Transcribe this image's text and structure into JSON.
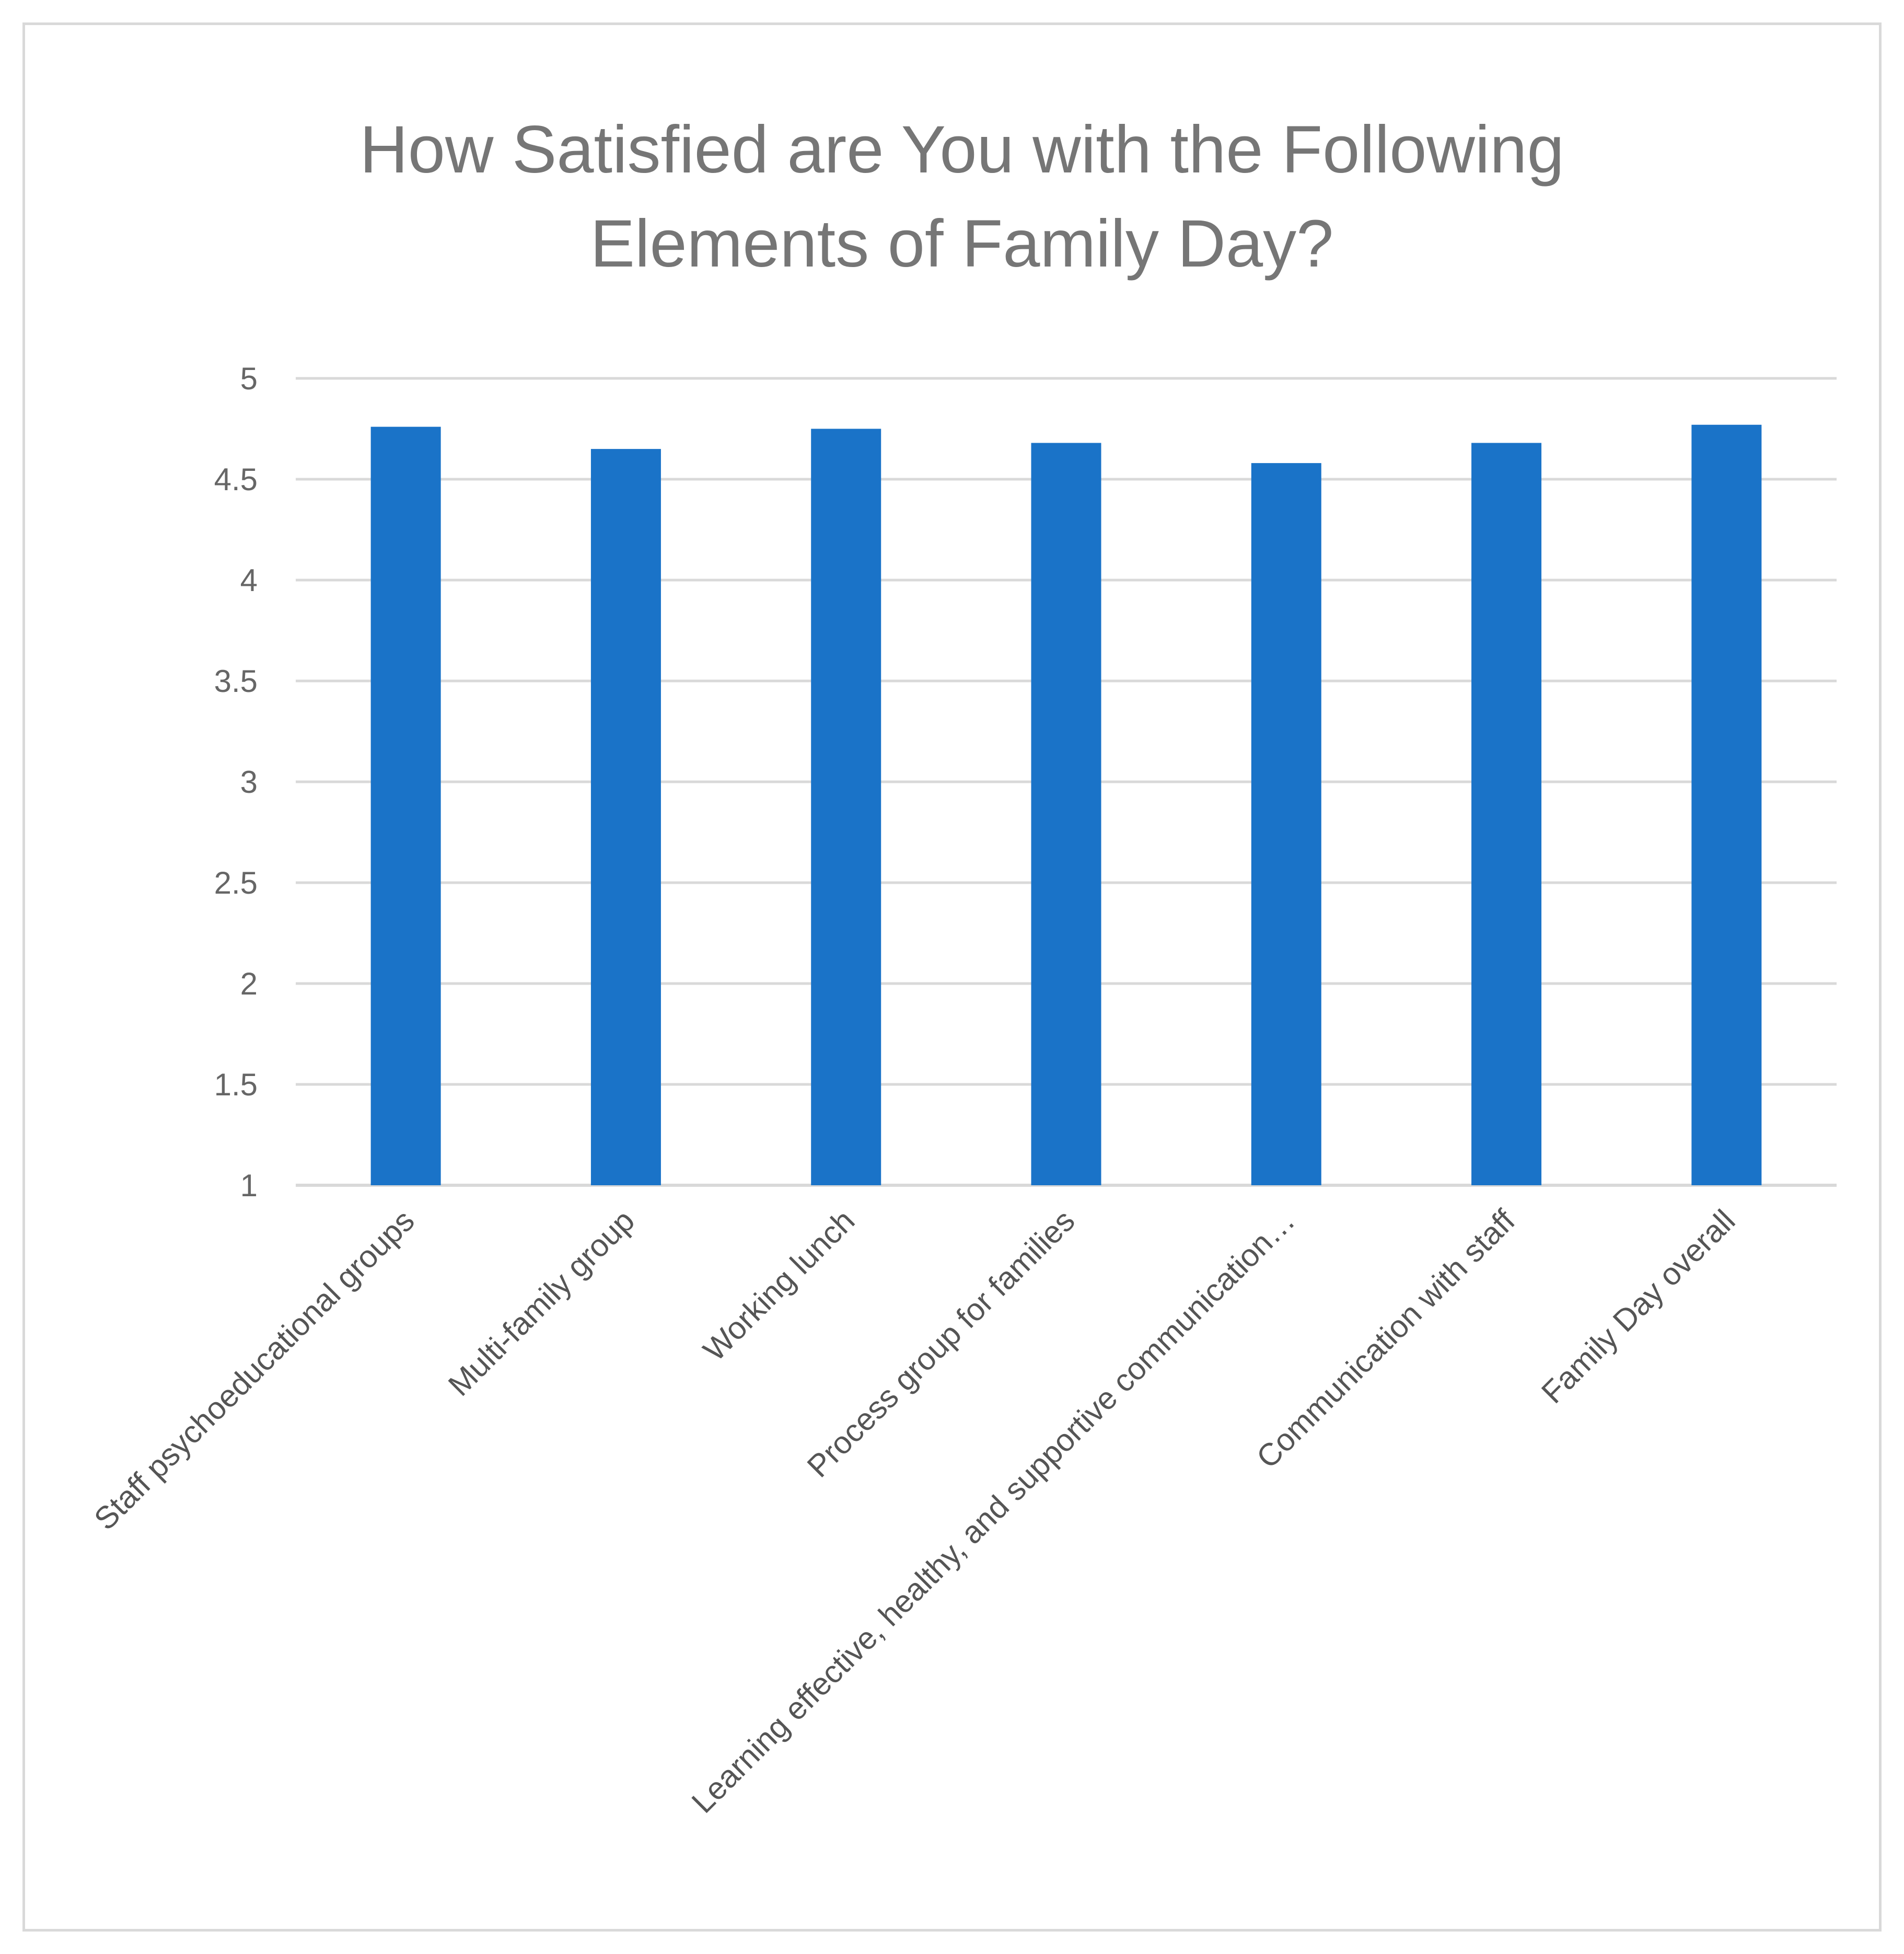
{
  "chart_data": {
    "type": "bar",
    "title_lines": [
      "How Satisfied are You with the Following",
      "Elements of Family Day?"
    ],
    "categories": [
      "Staff psychoeducational groups",
      "Multi-family group",
      "Working lunch",
      "Process group for families",
      "Learning effective, healthy, and supportive communication…",
      "Communication with staff",
      "Family Day overall"
    ],
    "values": [
      4.76,
      4.65,
      4.75,
      4.68,
      4.58,
      4.68,
      4.77
    ],
    "ylim": [
      1,
      5
    ],
    "yticks": [
      {
        "value": 1,
        "label": "1"
      },
      {
        "value": 1.5,
        "label": "1.5"
      },
      {
        "value": 2,
        "label": "2"
      },
      {
        "value": 2.5,
        "label": "2.5"
      },
      {
        "value": 3,
        "label": "3"
      },
      {
        "value": 3.5,
        "label": "3.5"
      },
      {
        "value": 4,
        "label": "4"
      },
      {
        "value": 4.5,
        "label": "4.5"
      },
      {
        "value": 5,
        "label": "5"
      }
    ],
    "grid": true,
    "legend": "none",
    "bar_color": "#1a73c8",
    "gridline_color": "#d9d9d9"
  }
}
